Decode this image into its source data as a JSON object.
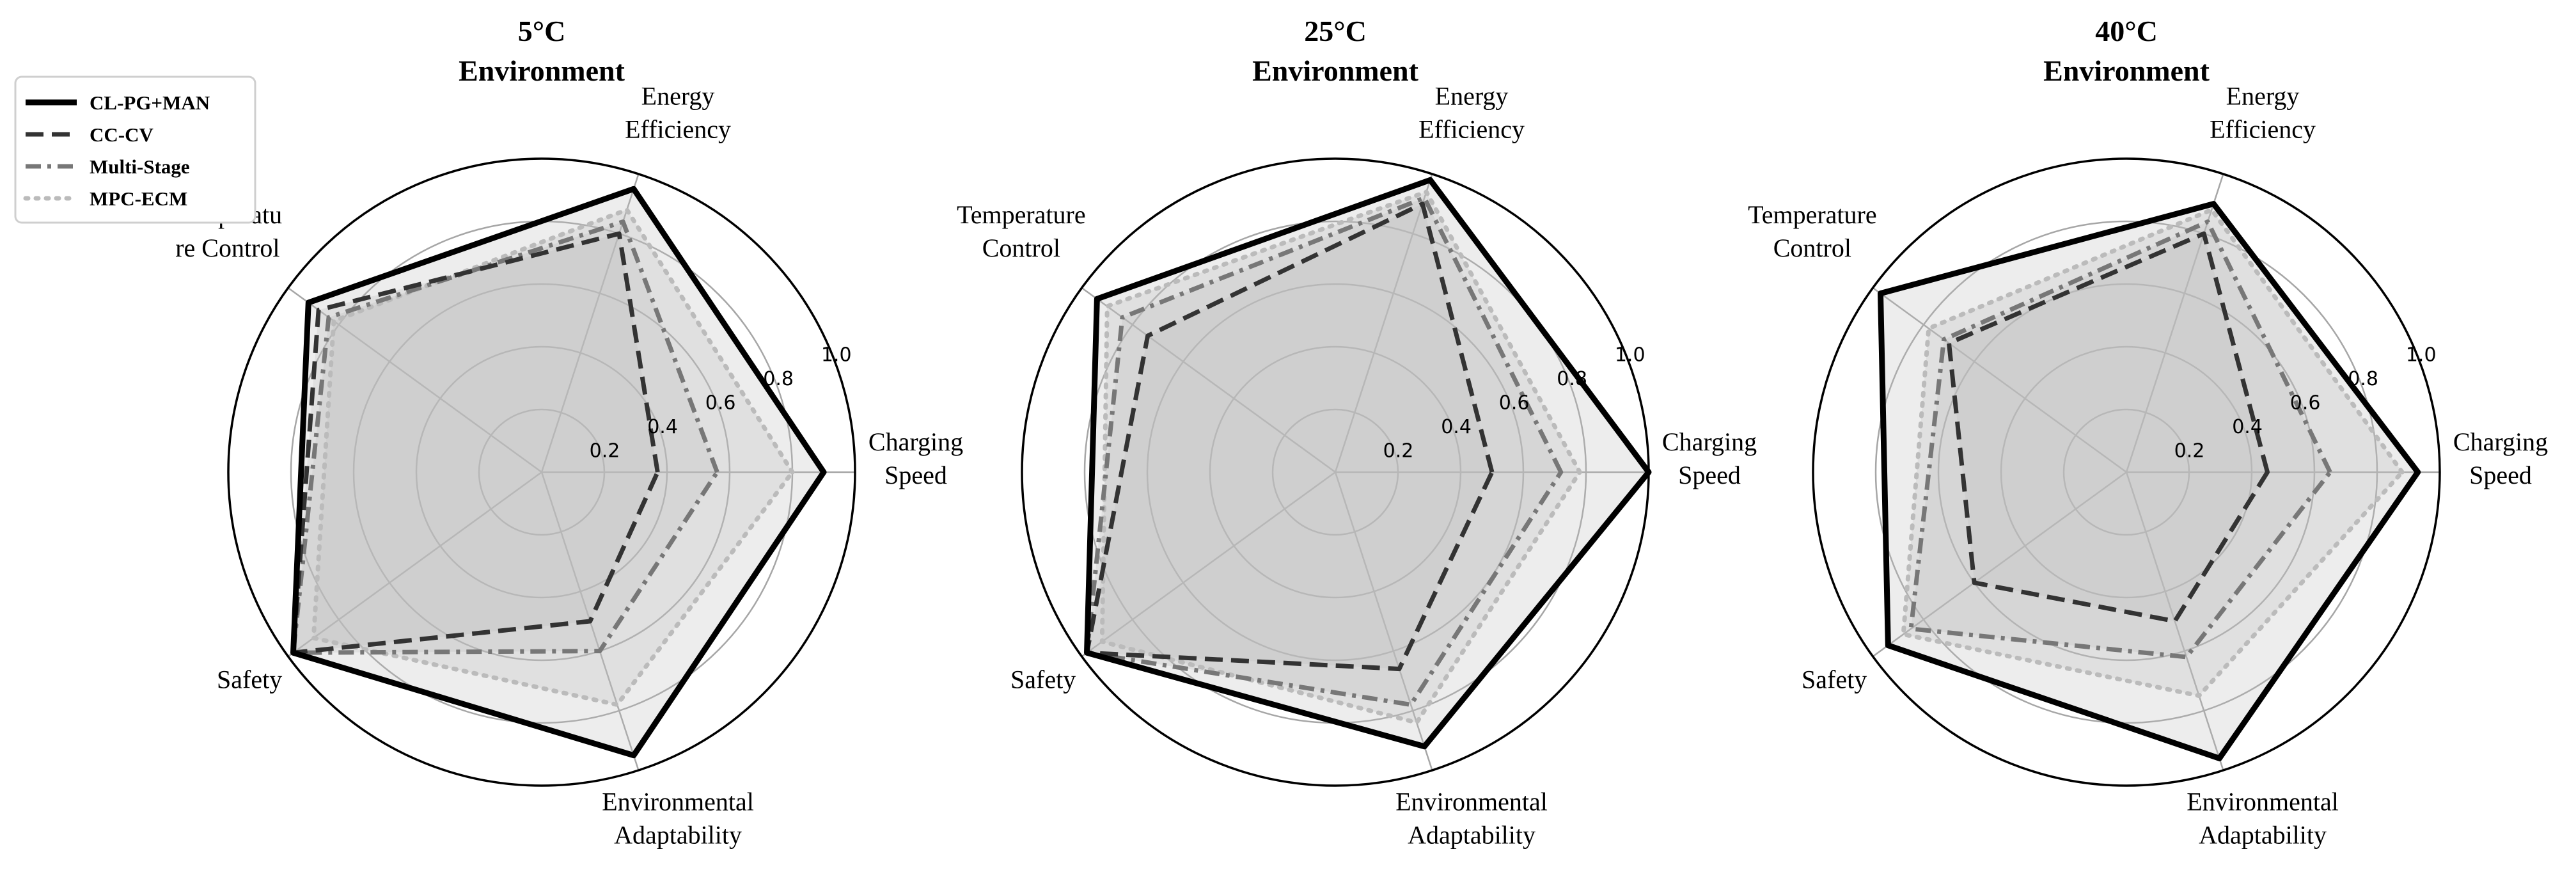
{
  "chart_data": [
    {
      "type": "radar",
      "title": "5°C",
      "subtitle": "Environment",
      "axes": [
        [
          "Charging",
          "Speed"
        ],
        [
          "Energy",
          "Efficiency"
        ],
        [
          "Temperatu",
          "re Control"
        ],
        [
          "Safety"
        ],
        [
          "Environmental",
          "Adaptability"
        ]
      ],
      "r_ticks": [
        "0.2",
        "0.4",
        "0.6",
        "0.8",
        "1.0"
      ],
      "rlim": [
        0,
        1.0
      ],
      "series": [
        {
          "name": "CL-PG+MAN",
          "values": [
            0.9,
            0.95,
            0.92,
            0.98,
            0.95
          ]
        },
        {
          "name": "CC-CV",
          "values": [
            0.37,
            0.8,
            0.88,
            0.98,
            0.5
          ]
        },
        {
          "name": "Multi-Stage",
          "values": [
            0.56,
            0.84,
            0.84,
            0.98,
            0.6
          ]
        },
        {
          "name": "MPC-ECM",
          "values": [
            0.8,
            0.88,
            0.82,
            0.9,
            0.78
          ]
        }
      ]
    },
    {
      "type": "radar",
      "title": "25°C",
      "subtitle": "Environment",
      "axes": [
        [
          "Charging",
          "Speed"
        ],
        [
          "Energy",
          "Efficiency"
        ],
        [
          "Temperature",
          "Control"
        ],
        [
          "Safety"
        ],
        [
          "Environmental",
          "Adaptability"
        ]
      ],
      "r_ticks": [
        "0.2",
        "0.4",
        "0.6",
        "0.8",
        "1.0"
      ],
      "rlim": [
        0,
        1.0
      ],
      "series": [
        {
          "name": "CL-PG+MAN",
          "values": [
            1.0,
            0.98,
            0.94,
            0.98,
            0.92
          ]
        },
        {
          "name": "CC-CV",
          "values": [
            0.5,
            0.9,
            0.74,
            0.98,
            0.66
          ]
        },
        {
          "name": "Multi-Stage",
          "values": [
            0.72,
            0.92,
            0.84,
            0.98,
            0.78
          ]
        },
        {
          "name": "MPC-ECM",
          "values": [
            0.78,
            0.94,
            0.9,
            0.92,
            0.84
          ]
        }
      ]
    },
    {
      "type": "radar",
      "title": "40°C",
      "subtitle": "Environment",
      "axes": [
        [
          "Charging",
          "Speed"
        ],
        [
          "Energy",
          "Efficiency"
        ],
        [
          "Temperature",
          "Control"
        ],
        [
          "Safety"
        ],
        [
          "Environmental",
          "Adaptability"
        ]
      ],
      "r_ticks": [
        "0.2",
        "0.4",
        "0.6",
        "0.8",
        "1.0"
      ],
      "rlim": [
        0,
        1.0
      ],
      "series": [
        {
          "name": "CL-PG+MAN",
          "values": [
            0.93,
            0.9,
            0.97,
            0.94,
            0.96
          ]
        },
        {
          "name": "CC-CV",
          "values": [
            0.45,
            0.8,
            0.7,
            0.6,
            0.5
          ]
        },
        {
          "name": "Multi-Stage",
          "values": [
            0.65,
            0.84,
            0.72,
            0.85,
            0.62
          ]
        },
        {
          "name": "MPC-ECM",
          "values": [
            0.88,
            0.88,
            0.78,
            0.88,
            0.75
          ]
        }
      ]
    }
  ],
  "legend": {
    "placement": "top-left",
    "items": [
      {
        "name": "CL-PG+MAN",
        "color": "#000000",
        "dash": "solid"
      },
      {
        "name": "CC-CV",
        "color": "#333333",
        "dash": "dashed"
      },
      {
        "name": "Multi-Stage",
        "color": "#777777",
        "dash": "dashdot"
      },
      {
        "name": "MPC-ECM",
        "color": "#bbbbbb",
        "dash": "dotted"
      }
    ]
  },
  "colors": {
    "fill": "#bdbdbd",
    "grid": "#a6a6a6",
    "outer_ring": "#000000",
    "text": "#000000"
  }
}
